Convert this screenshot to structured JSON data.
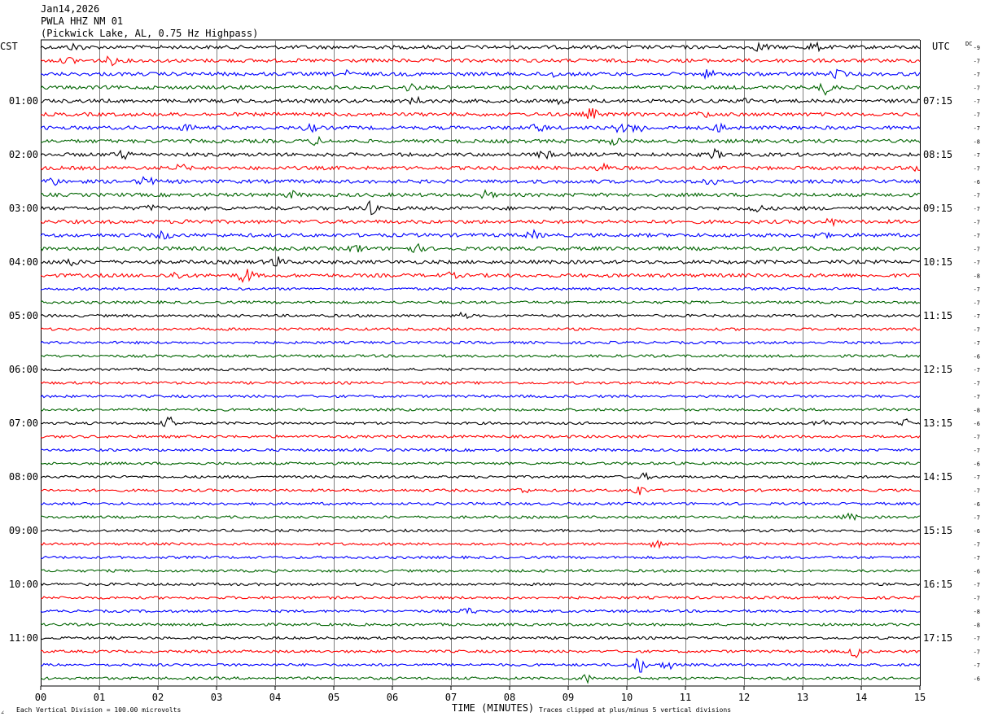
{
  "header": {
    "date": "Jan14,2026",
    "station": "PWLA HHZ NM 01",
    "location": "(Pickwick Lake, AL, 0.75 Hz Highpass)"
  },
  "left_axis_label": "CST",
  "right_axis_label": "UTC",
  "dc_label": "DC",
  "xaxis_title": "TIME (MINUTES)",
  "footer": {
    "left_glyph": "∠",
    "scale_note": "Each Vertical Division =  100.00 microvolts",
    "clip_note": "Traces clipped at plus/minus 5 vertical divisions"
  },
  "colors": {
    "trace_cycle": [
      "#000000",
      "#ff0000",
      "#0000ff",
      "#006400"
    ],
    "grid": "#808080",
    "text": "#000000"
  },
  "chart_data": {
    "type": "helicorder",
    "title": "PWLA HHZ NM 01",
    "xlabel": "TIME (MINUTES)",
    "xlim": [
      0,
      15
    ],
    "x_ticks": [
      "00",
      "01",
      "02",
      "03",
      "04",
      "05",
      "06",
      "07",
      "08",
      "09",
      "10",
      "11",
      "12",
      "13",
      "14",
      "15"
    ],
    "minutes_per_line": 15,
    "line_count": 48,
    "left_time_labels": [
      {
        "line": 4,
        "text": "01:00"
      },
      {
        "line": 8,
        "text": "02:00"
      },
      {
        "line": 12,
        "text": "03:00"
      },
      {
        "line": 16,
        "text": "04:00"
      },
      {
        "line": 20,
        "text": "05:00"
      },
      {
        "line": 24,
        "text": "06:00"
      },
      {
        "line": 28,
        "text": "07:00"
      },
      {
        "line": 32,
        "text": "08:00"
      },
      {
        "line": 36,
        "text": "09:00"
      },
      {
        "line": 40,
        "text": "10:00"
      },
      {
        "line": 44,
        "text": "11:00"
      }
    ],
    "right_time_labels": [
      {
        "line": 4,
        "text": "07:15"
      },
      {
        "line": 8,
        "text": "08:15"
      },
      {
        "line": 12,
        "text": "09:15"
      },
      {
        "line": 16,
        "text": "10:15"
      },
      {
        "line": 20,
        "text": "11:15"
      },
      {
        "line": 24,
        "text": "12:15"
      },
      {
        "line": 28,
        "text": "13:15"
      },
      {
        "line": 32,
        "text": "14:15"
      },
      {
        "line": 36,
        "text": "15:15"
      },
      {
        "line": 40,
        "text": "16:15"
      },
      {
        "line": 44,
        "text": "17:15"
      }
    ],
    "dc_offsets": [
      "-9",
      "-7",
      "-7",
      "-7",
      "-7",
      "-7",
      "-7",
      "-8",
      "-7",
      "-7",
      "-6",
      "-7",
      "-7",
      "-7",
      "-7",
      "-7",
      "-7",
      "-8",
      "-7",
      "-7",
      "-7",
      "-7",
      "-7",
      "-6",
      "-7",
      "-7",
      "-7",
      "-8",
      "-6",
      "-7",
      "-7",
      "-6",
      "-7",
      "-7",
      "-6",
      "-7",
      "-6",
      "-7",
      "-7",
      "-6",
      "-7",
      "-7",
      "-8",
      "-8",
      "-7",
      "-7",
      "-7",
      "-6"
    ],
    "events": [
      {
        "line": 0,
        "minute": 0.6,
        "amp": 1.2
      },
      {
        "line": 0,
        "minute": 12.3,
        "amp": 1.6
      },
      {
        "line": 0,
        "minute": 13.2,
        "amp": 1.4
      },
      {
        "line": 1,
        "minute": 0.5,
        "amp": 1.1
      },
      {
        "line": 1,
        "minute": 1.2,
        "amp": 1.3
      },
      {
        "line": 2,
        "minute": 5.2,
        "amp": 1.0
      },
      {
        "line": 2,
        "minute": 8.7,
        "amp": 1.0
      },
      {
        "line": 2,
        "minute": 11.4,
        "amp": 1.3
      },
      {
        "line": 2,
        "minute": 13.6,
        "amp": 1.4
      },
      {
        "line": 3,
        "minute": 6.3,
        "amp": 1.2
      },
      {
        "line": 3,
        "minute": 13.4,
        "amp": 2.6
      },
      {
        "line": 4,
        "minute": 6.4,
        "amp": 1.1
      },
      {
        "line": 4,
        "minute": 8.9,
        "amp": 1.0
      },
      {
        "line": 4,
        "minute": 12.1,
        "amp": 1.0
      },
      {
        "line": 5,
        "minute": 9.4,
        "amp": 1.8
      },
      {
        "line": 5,
        "minute": 11.3,
        "amp": 1.0
      },
      {
        "line": 6,
        "minute": 2.5,
        "amp": 1.2
      },
      {
        "line": 6,
        "minute": 4.6,
        "amp": 1.1
      },
      {
        "line": 6,
        "minute": 8.5,
        "amp": 1.4
      },
      {
        "line": 6,
        "minute": 9.9,
        "amp": 1.5
      },
      {
        "line": 6,
        "minute": 10.2,
        "amp": 1.6
      },
      {
        "line": 6,
        "minute": 11.6,
        "amp": 1.5
      },
      {
        "line": 7,
        "minute": 4.7,
        "amp": 1.2
      },
      {
        "line": 7,
        "minute": 9.8,
        "amp": 1.0
      },
      {
        "line": 8,
        "minute": 1.4,
        "amp": 1.3
      },
      {
        "line": 8,
        "minute": 8.6,
        "amp": 1.3
      },
      {
        "line": 8,
        "minute": 11.5,
        "amp": 1.5
      },
      {
        "line": 9,
        "minute": 2.4,
        "amp": 1.0
      },
      {
        "line": 9,
        "minute": 9.6,
        "amp": 1.3
      },
      {
        "line": 9,
        "minute": 15.0,
        "amp": 1.0
      },
      {
        "line": 10,
        "minute": 0.2,
        "amp": 1.4
      },
      {
        "line": 10,
        "minute": 1.8,
        "amp": 1.8
      },
      {
        "line": 10,
        "minute": 11.4,
        "amp": 1.6
      },
      {
        "line": 11,
        "minute": 4.3,
        "amp": 1.0
      },
      {
        "line": 11,
        "minute": 7.6,
        "amp": 1.3
      },
      {
        "line": 12,
        "minute": 1.9,
        "amp": 1.0
      },
      {
        "line": 12,
        "minute": 5.6,
        "amp": 2.4
      },
      {
        "line": 12,
        "minute": 12.2,
        "amp": 1.3
      },
      {
        "line": 13,
        "minute": 2.6,
        "amp": 1.0
      },
      {
        "line": 13,
        "minute": 13.5,
        "amp": 1.0
      },
      {
        "line": 14,
        "minute": 2.1,
        "amp": 1.3
      },
      {
        "line": 14,
        "minute": 8.4,
        "amp": 1.3
      },
      {
        "line": 14,
        "minute": 13.3,
        "amp": 1.2
      },
      {
        "line": 15,
        "minute": 5.4,
        "amp": 1.4
      },
      {
        "line": 15,
        "minute": 6.4,
        "amp": 1.3
      },
      {
        "line": 16,
        "minute": 0.5,
        "amp": 1.3
      },
      {
        "line": 16,
        "minute": 4.0,
        "amp": 2.0
      },
      {
        "line": 17,
        "minute": 2.3,
        "amp": 1.2
      },
      {
        "line": 17,
        "minute": 3.5,
        "amp": 3.0
      },
      {
        "line": 17,
        "minute": 7.0,
        "amp": 0.8
      },
      {
        "line": 20,
        "minute": 7.2,
        "amp": 1.0
      },
      {
        "line": 28,
        "minute": 2.2,
        "amp": 2.0
      },
      {
        "line": 28,
        "minute": 13.3,
        "amp": 1.6
      },
      {
        "line": 28,
        "minute": 14.8,
        "amp": 1.4
      },
      {
        "line": 32,
        "minute": 10.3,
        "amp": 1.0
      },
      {
        "line": 33,
        "minute": 8.2,
        "amp": 1.0
      },
      {
        "line": 33,
        "minute": 10.2,
        "amp": 1.9
      },
      {
        "line": 35,
        "minute": 13.8,
        "amp": 1.2
      },
      {
        "line": 37,
        "minute": 10.5,
        "amp": 1.1
      },
      {
        "line": 42,
        "minute": 7.3,
        "amp": 1.1
      },
      {
        "line": 45,
        "minute": 13.9,
        "amp": 2.0
      },
      {
        "line": 46,
        "minute": 10.2,
        "amp": 3.2
      },
      {
        "line": 46,
        "minute": 10.7,
        "amp": 1.5
      },
      {
        "line": 47,
        "minute": 9.3,
        "amp": 1.4
      }
    ]
  }
}
